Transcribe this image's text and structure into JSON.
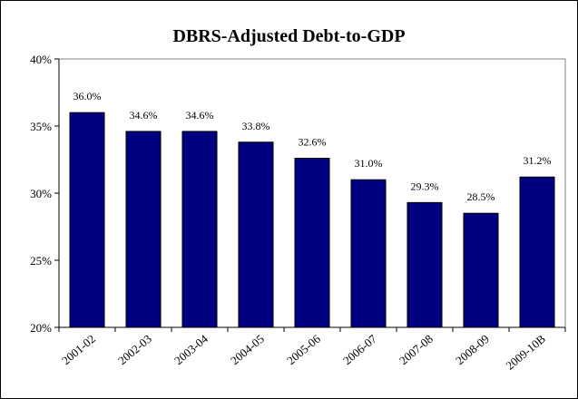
{
  "chart_data": {
    "type": "bar",
    "title": "DBRS-Adjusted Debt-to-GDP",
    "categories": [
      "2001-02",
      "2002-03",
      "2003-04",
      "2004-05",
      "2005-06",
      "2006-07",
      "2007-08",
      "2008-09",
      "2009-10B"
    ],
    "values": [
      36.0,
      34.6,
      34.6,
      33.8,
      32.6,
      31.0,
      29.3,
      28.5,
      31.2
    ],
    "data_labels": [
      "36.0%",
      "34.6%",
      "34.6%",
      "33.8%",
      "32.6%",
      "31.0%",
      "29.3%",
      "28.5%",
      "31.2%"
    ],
    "y_ticks": [
      20,
      25,
      30,
      35,
      40
    ],
    "y_tick_labels": [
      "20%",
      "25%",
      "30%",
      "35%",
      "40%"
    ],
    "ylim": [
      20,
      40
    ],
    "xlabel": "",
    "ylabel": "",
    "grid": false,
    "legend": "none",
    "bar_color": "#000080"
  }
}
